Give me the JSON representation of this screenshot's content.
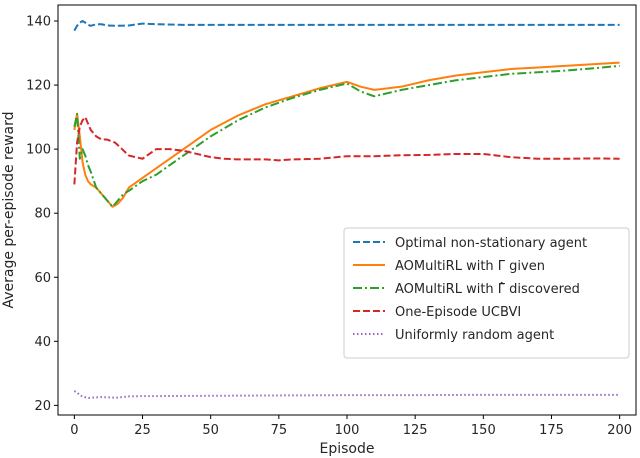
{
  "chart_data": {
    "type": "line",
    "xlabel": "Episode",
    "ylabel": "Average per-episode reward",
    "xlim": [
      -6,
      206
    ],
    "ylim": [
      17,
      145
    ],
    "xticks": [
      0,
      25,
      50,
      75,
      100,
      125,
      150,
      175,
      200
    ],
    "yticks": [
      20,
      40,
      60,
      80,
      100,
      120,
      140
    ],
    "legend_position": "center-right",
    "series": [
      {
        "name": "Optimal non-stationary agent",
        "color": "#1f77b4",
        "dash": "dashed",
        "x": [
          0,
          1,
          2,
          3,
          4,
          5,
          6,
          8,
          10,
          12,
          15,
          20,
          25,
          30,
          40,
          50,
          60,
          80,
          100,
          120,
          140,
          160,
          180,
          200
        ],
        "y": [
          137,
          138.5,
          139.5,
          140,
          139.5,
          138.8,
          138.5,
          139,
          139,
          138.6,
          138.5,
          138.6,
          139.2,
          139,
          138.8,
          138.8,
          138.8,
          138.8,
          138.8,
          138.8,
          138.8,
          138.8,
          138.8,
          138.8
        ]
      },
      {
        "name": "AOMultiRL with Γ given",
        "color": "#ff7f0e",
        "dash": "solid",
        "x": [
          0,
          1,
          2,
          3,
          4,
          5,
          6,
          8,
          10,
          12,
          14,
          16,
          18,
          20,
          25,
          30,
          40,
          50,
          60,
          70,
          80,
          90,
          100,
          105,
          110,
          120,
          130,
          140,
          150,
          160,
          170,
          180,
          190,
          200
        ],
        "y": [
          106,
          111,
          104,
          96,
          92,
          90,
          89,
          88,
          86,
          84,
          82,
          83,
          85,
          88,
          91,
          94,
          100,
          106,
          110.5,
          114,
          116.5,
          119,
          121,
          119.5,
          118.5,
          119.5,
          121.5,
          123,
          124,
          125,
          125.5,
          126,
          126.5,
          127
        ]
      },
      {
        "name": "AOMultiRL with Γ̂ discovered",
        "color": "#2ca02c",
        "dash": "dashdot",
        "x": [
          0,
          1,
          2,
          3,
          4,
          5,
          6,
          8,
          10,
          12,
          14,
          16,
          18,
          20,
          25,
          30,
          40,
          50,
          60,
          70,
          80,
          90,
          100,
          105,
          110,
          120,
          130,
          140,
          150,
          160,
          170,
          180,
          190,
          200
        ],
        "y": [
          107,
          111,
          97,
          100,
          98,
          95,
          93,
          88,
          86,
          84,
          82,
          84,
          86,
          87,
          90,
          92,
          98,
          104,
          109,
          113,
          116,
          118.5,
          120.5,
          118,
          116.5,
          118.5,
          120,
          121.5,
          122.5,
          123.5,
          124,
          124.5,
          125.2,
          126
        ]
      },
      {
        "name": "One-Episode UCBVI",
        "color": "#d62728",
        "dash": "dashed",
        "x": [
          0,
          1,
          2,
          3,
          4,
          5,
          6,
          7,
          8,
          10,
          12,
          15,
          20,
          25,
          30,
          35,
          40,
          45,
          50,
          55,
          60,
          70,
          75,
          80,
          90,
          100,
          110,
          120,
          130,
          140,
          150,
          160,
          170,
          180,
          190,
          200
        ],
        "y": [
          89,
          102,
          107,
          109,
          110,
          108,
          106,
          105,
          104,
          103,
          103,
          102,
          98,
          97,
          100,
          100,
          99.5,
          98.5,
          97.5,
          97,
          96.8,
          96.8,
          96.5,
          96.8,
          97,
          97.8,
          97.8,
          98.1,
          98.2,
          98.5,
          98.5,
          97.5,
          97,
          97,
          97.1,
          97
        ]
      },
      {
        "name": "Uniformly random agent",
        "color": "#9467bd",
        "dash": "dotted",
        "x": [
          0,
          1,
          2,
          3,
          5,
          8,
          10,
          15,
          20,
          25,
          30,
          50,
          75,
          100,
          125,
          150,
          175,
          200
        ],
        "y": [
          24.5,
          24,
          23.2,
          22.8,
          22.3,
          22.5,
          22.6,
          22.4,
          22.8,
          22.9,
          22.9,
          23,
          23.1,
          23.2,
          23.2,
          23.3,
          23.3,
          23.3
        ]
      }
    ]
  }
}
